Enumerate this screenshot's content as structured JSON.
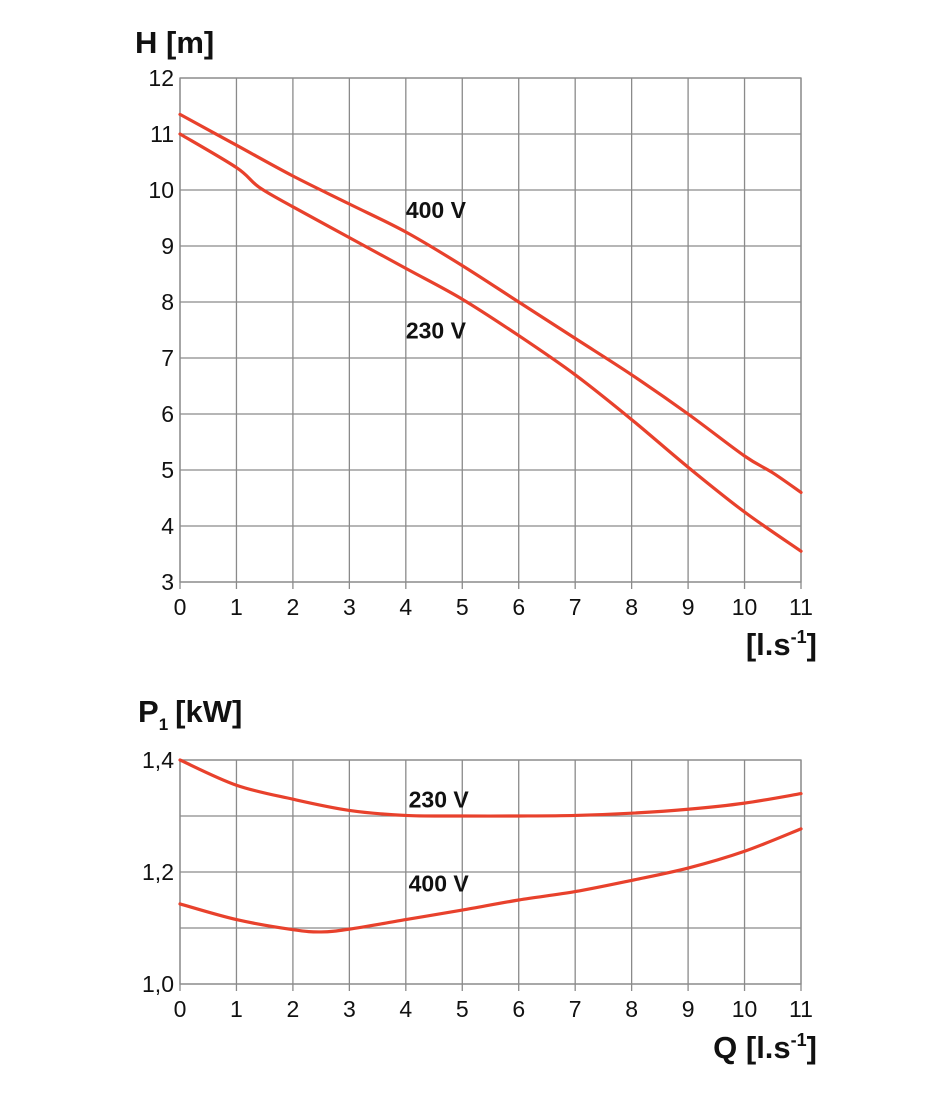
{
  "colors": {
    "curve": "#e8412c",
    "grid": "#8a8a8a"
  },
  "chart_data": [
    {
      "type": "line",
      "ylabel": "H [m]",
      "xlabel": "[l.s⁻¹]",
      "xlim": [
        0,
        11
      ],
      "ylim": [
        3,
        12
      ],
      "x_ticks": [
        0,
        1,
        2,
        3,
        4,
        5,
        6,
        7,
        8,
        9,
        10,
        11
      ],
      "y_ticks": [
        3,
        4,
        5,
        6,
        7,
        8,
        9,
        10,
        11,
        12
      ],
      "y_tick_labels": [
        "3",
        "4",
        "5",
        "6",
        "7",
        "8",
        "9",
        "10",
        "11",
        "12"
      ],
      "grid": true,
      "series": [
        {
          "name": "400 V",
          "label_at": [
            4.0,
            9.5
          ],
          "points": [
            [
              0,
              11.35
            ],
            [
              1,
              10.8
            ],
            [
              2,
              10.25
            ],
            [
              3,
              9.75
            ],
            [
              4,
              9.25
            ],
            [
              5,
              8.65
            ],
            [
              6,
              8.0
            ],
            [
              7,
              7.35
            ],
            [
              8,
              6.7
            ],
            [
              9,
              6.0
            ],
            [
              10,
              5.25
            ],
            [
              10.5,
              4.95
            ],
            [
              11,
              4.6
            ]
          ]
        },
        {
          "name": "230 V",
          "label_at": [
            4.0,
            7.35
          ],
          "points": [
            [
              0,
              11.0
            ],
            [
              1,
              10.4
            ],
            [
              1.4,
              10.05
            ],
            [
              2,
              9.7
            ],
            [
              3,
              9.15
            ],
            [
              4,
              8.6
            ],
            [
              5,
              8.05
            ],
            [
              6,
              7.4
            ],
            [
              7,
              6.7
            ],
            [
              8,
              5.9
            ],
            [
              9,
              5.05
            ],
            [
              10,
              4.25
            ],
            [
              11,
              3.55
            ]
          ]
        }
      ]
    },
    {
      "type": "line",
      "ylabel_main": "P",
      "ylabel_sub": "1",
      "ylabel_rest": "[kW]",
      "xlabel": "Q [l.s⁻¹]",
      "xlim": [
        0,
        11
      ],
      "ylim": [
        1.0,
        1.4
      ],
      "x_ticks": [
        0,
        1,
        2,
        3,
        4,
        5,
        6,
        7,
        8,
        9,
        10,
        11
      ],
      "y_ticks": [
        1.0,
        1.1,
        1.2,
        1.3,
        1.4
      ],
      "y_tick_labels": [
        "1,0",
        "",
        "1,2",
        "",
        "1,4"
      ],
      "grid": true,
      "series": [
        {
          "name": "230 V",
          "label_at": [
            4.05,
            1.315
          ],
          "points": [
            [
              0,
              1.4
            ],
            [
              1,
              1.355
            ],
            [
              2,
              1.33
            ],
            [
              3,
              1.31
            ],
            [
              4,
              1.301
            ],
            [
              5,
              1.3
            ],
            [
              6,
              1.3
            ],
            [
              7,
              1.301
            ],
            [
              8,
              1.305
            ],
            [
              9,
              1.312
            ],
            [
              10,
              1.323
            ],
            [
              11,
              1.34
            ]
          ]
        },
        {
          "name": "400 V",
          "label_at": [
            4.05,
            1.165
          ],
          "points": [
            [
              0,
              1.143
            ],
            [
              1,
              1.115
            ],
            [
              2,
              1.097
            ],
            [
              2.5,
              1.093
            ],
            [
              3,
              1.098
            ],
            [
              4,
              1.115
            ],
            [
              5,
              1.132
            ],
            [
              6,
              1.15
            ],
            [
              7,
              1.165
            ],
            [
              8,
              1.185
            ],
            [
              9,
              1.207
            ],
            [
              10,
              1.237
            ],
            [
              11,
              1.277
            ]
          ]
        }
      ]
    }
  ]
}
